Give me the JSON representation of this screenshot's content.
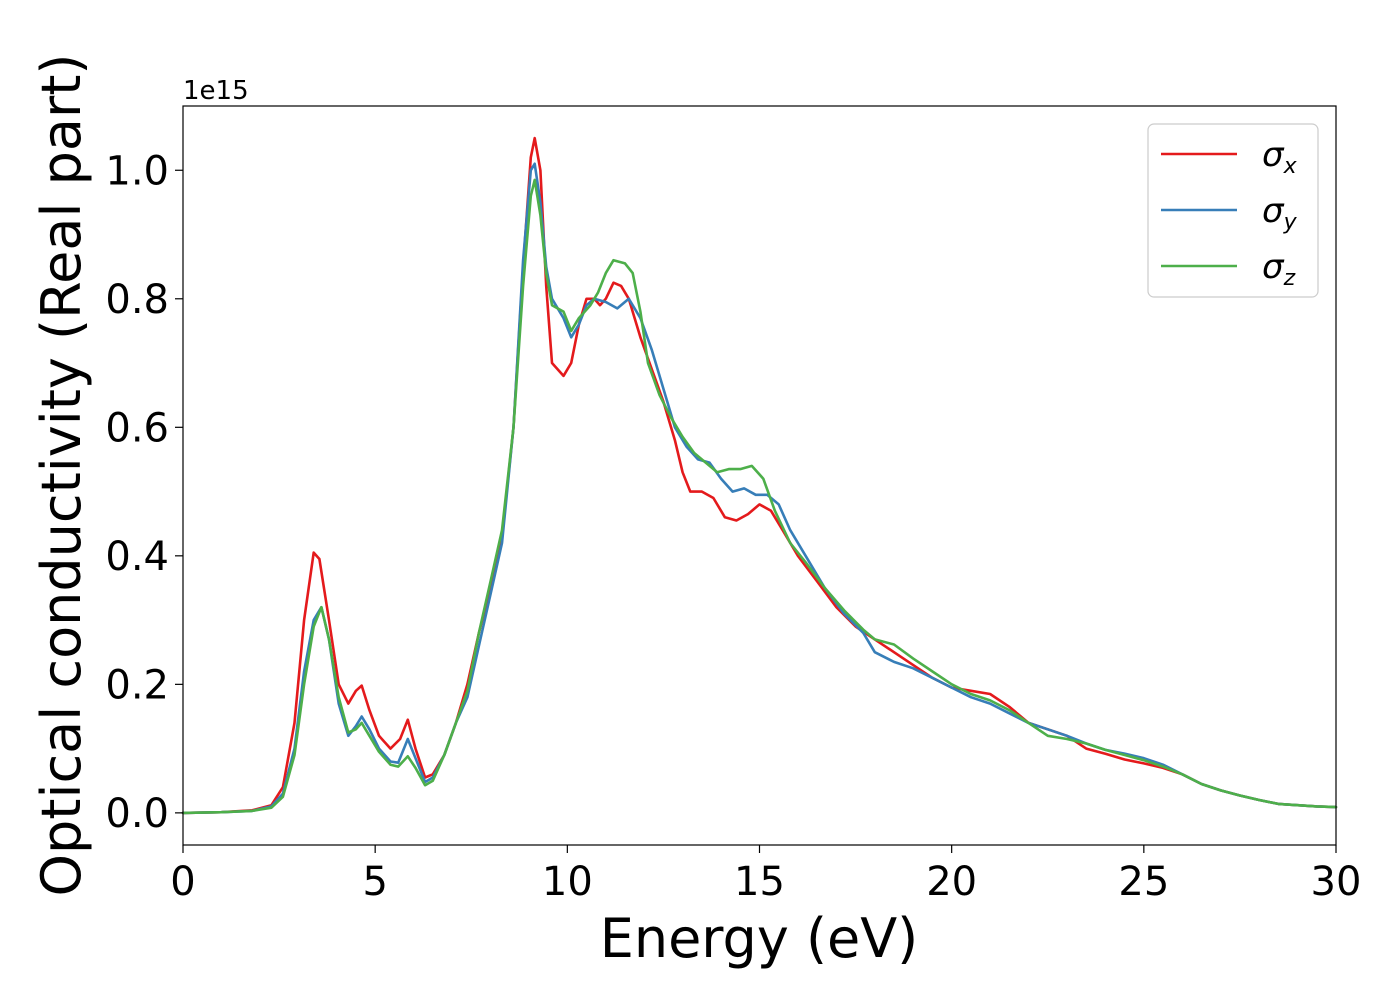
{
  "chart_data": {
    "type": "line",
    "xlabel": "Energy (eV)",
    "ylabel": "Optical conductivity (Real part)",
    "y_offset_label": "1e15",
    "xlim": [
      0,
      30
    ],
    "ylim": [
      -0.05,
      1.1
    ],
    "x_ticks": [
      "0",
      "5",
      "10",
      "15",
      "20",
      "25",
      "30"
    ],
    "y_ticks": [
      "0.0",
      "0.2",
      "0.4",
      "0.6",
      "0.8",
      "1.0"
    ],
    "grid": false,
    "legend_position": "top-right",
    "series": [
      {
        "name": "σx",
        "symbol": "σ",
        "subscript": "x",
        "color": "#e41a1c",
        "points": [
          [
            0,
            0
          ],
          [
            1,
            0.001
          ],
          [
            1.8,
            0.004
          ],
          [
            2.3,
            0.012
          ],
          [
            2.6,
            0.04
          ],
          [
            2.9,
            0.14
          ],
          [
            3.15,
            0.3
          ],
          [
            3.4,
            0.405
          ],
          [
            3.55,
            0.395
          ],
          [
            3.8,
            0.3
          ],
          [
            4.05,
            0.2
          ],
          [
            4.3,
            0.17
          ],
          [
            4.5,
            0.19
          ],
          [
            4.65,
            0.198
          ],
          [
            4.85,
            0.16
          ],
          [
            5.1,
            0.12
          ],
          [
            5.4,
            0.1
          ],
          [
            5.65,
            0.115
          ],
          [
            5.85,
            0.145
          ],
          [
            6.05,
            0.1
          ],
          [
            6.3,
            0.055
          ],
          [
            6.5,
            0.06
          ],
          [
            6.8,
            0.09
          ],
          [
            7.1,
            0.14
          ],
          [
            7.4,
            0.2
          ],
          [
            7.7,
            0.28
          ],
          [
            8.0,
            0.35
          ],
          [
            8.3,
            0.43
          ],
          [
            8.6,
            0.6
          ],
          [
            8.85,
            0.85
          ],
          [
            9.05,
            1.02
          ],
          [
            9.15,
            1.05
          ],
          [
            9.3,
            1.0
          ],
          [
            9.45,
            0.82
          ],
          [
            9.6,
            0.7
          ],
          [
            9.9,
            0.68
          ],
          [
            10.1,
            0.7
          ],
          [
            10.3,
            0.76
          ],
          [
            10.5,
            0.8
          ],
          [
            10.7,
            0.8
          ],
          [
            10.85,
            0.79
          ],
          [
            11.0,
            0.8
          ],
          [
            11.2,
            0.825
          ],
          [
            11.4,
            0.82
          ],
          [
            11.6,
            0.8
          ],
          [
            11.9,
            0.74
          ],
          [
            12.2,
            0.69
          ],
          [
            12.5,
            0.64
          ],
          [
            12.8,
            0.58
          ],
          [
            13.0,
            0.53
          ],
          [
            13.2,
            0.5
          ],
          [
            13.5,
            0.5
          ],
          [
            13.8,
            0.49
          ],
          [
            14.1,
            0.46
          ],
          [
            14.4,
            0.455
          ],
          [
            14.7,
            0.465
          ],
          [
            15.0,
            0.48
          ],
          [
            15.3,
            0.47
          ],
          [
            15.6,
            0.44
          ],
          [
            16.0,
            0.4
          ],
          [
            16.5,
            0.36
          ],
          [
            17.0,
            0.32
          ],
          [
            17.5,
            0.29
          ],
          [
            18.0,
            0.27
          ],
          [
            18.5,
            0.25
          ],
          [
            19.0,
            0.23
          ],
          [
            19.5,
            0.21
          ],
          [
            20.0,
            0.195
          ],
          [
            20.5,
            0.19
          ],
          [
            21.0,
            0.185
          ],
          [
            21.5,
            0.165
          ],
          [
            22.0,
            0.14
          ],
          [
            22.5,
            0.13
          ],
          [
            23.0,
            0.12
          ],
          [
            23.5,
            0.1
          ],
          [
            24.0,
            0.092
          ],
          [
            24.5,
            0.083
          ],
          [
            25.0,
            0.077
          ],
          [
            25.5,
            0.07
          ],
          [
            26.0,
            0.06
          ],
          [
            26.5,
            0.045
          ],
          [
            27.0,
            0.035
          ],
          [
            27.5,
            0.027
          ],
          [
            28.0,
            0.02
          ],
          [
            28.5,
            0.014
          ],
          [
            29.0,
            0.012
          ],
          [
            29.5,
            0.01
          ],
          [
            30,
            0.009
          ]
        ]
      },
      {
        "name": "σy",
        "symbol": "σ",
        "subscript": "y",
        "color": "#377eb8",
        "points": [
          [
            0,
            0
          ],
          [
            1,
            0.001
          ],
          [
            1.8,
            0.003
          ],
          [
            2.3,
            0.01
          ],
          [
            2.6,
            0.03
          ],
          [
            2.9,
            0.1
          ],
          [
            3.15,
            0.22
          ],
          [
            3.4,
            0.3
          ],
          [
            3.6,
            0.32
          ],
          [
            3.8,
            0.27
          ],
          [
            4.05,
            0.17
          ],
          [
            4.3,
            0.12
          ],
          [
            4.5,
            0.135
          ],
          [
            4.65,
            0.15
          ],
          [
            4.85,
            0.13
          ],
          [
            5.1,
            0.1
          ],
          [
            5.4,
            0.08
          ],
          [
            5.6,
            0.078
          ],
          [
            5.85,
            0.115
          ],
          [
            6.05,
            0.085
          ],
          [
            6.3,
            0.048
          ],
          [
            6.5,
            0.055
          ],
          [
            6.8,
            0.09
          ],
          [
            7.1,
            0.14
          ],
          [
            7.4,
            0.18
          ],
          [
            7.7,
            0.26
          ],
          [
            8.0,
            0.34
          ],
          [
            8.3,
            0.42
          ],
          [
            8.6,
            0.6
          ],
          [
            8.85,
            0.86
          ],
          [
            9.05,
            1.0
          ],
          [
            9.15,
            1.01
          ],
          [
            9.3,
            0.95
          ],
          [
            9.45,
            0.85
          ],
          [
            9.6,
            0.8
          ],
          [
            9.9,
            0.77
          ],
          [
            10.1,
            0.74
          ],
          [
            10.3,
            0.76
          ],
          [
            10.5,
            0.79
          ],
          [
            10.7,
            0.8
          ],
          [
            11.0,
            0.795
          ],
          [
            11.3,
            0.785
          ],
          [
            11.6,
            0.8
          ],
          [
            11.9,
            0.77
          ],
          [
            12.2,
            0.72
          ],
          [
            12.5,
            0.66
          ],
          [
            12.8,
            0.6
          ],
          [
            13.1,
            0.57
          ],
          [
            13.4,
            0.55
          ],
          [
            13.7,
            0.545
          ],
          [
            14.0,
            0.52
          ],
          [
            14.3,
            0.5
          ],
          [
            14.6,
            0.505
          ],
          [
            14.9,
            0.495
          ],
          [
            15.2,
            0.495
          ],
          [
            15.5,
            0.48
          ],
          [
            15.8,
            0.44
          ],
          [
            16.2,
            0.4
          ],
          [
            16.7,
            0.35
          ],
          [
            17.2,
            0.31
          ],
          [
            17.7,
            0.28
          ],
          [
            18.0,
            0.25
          ],
          [
            18.5,
            0.235
          ],
          [
            19.0,
            0.225
          ],
          [
            19.5,
            0.21
          ],
          [
            20.0,
            0.195
          ],
          [
            20.5,
            0.18
          ],
          [
            21.0,
            0.17
          ],
          [
            21.5,
            0.155
          ],
          [
            22.0,
            0.14
          ],
          [
            22.5,
            0.13
          ],
          [
            23.0,
            0.12
          ],
          [
            23.5,
            0.108
          ],
          [
            24.0,
            0.098
          ],
          [
            24.5,
            0.092
          ],
          [
            25.0,
            0.085
          ],
          [
            25.5,
            0.075
          ],
          [
            26.0,
            0.06
          ],
          [
            26.5,
            0.045
          ],
          [
            27.0,
            0.035
          ],
          [
            27.5,
            0.027
          ],
          [
            28.0,
            0.02
          ],
          [
            28.5,
            0.014
          ],
          [
            29.0,
            0.012
          ],
          [
            29.5,
            0.01
          ],
          [
            30,
            0.009
          ]
        ]
      },
      {
        "name": "σz",
        "symbol": "σ",
        "subscript": "z",
        "color": "#4daf4a",
        "points": [
          [
            0,
            0
          ],
          [
            1,
            0.001
          ],
          [
            1.8,
            0.003
          ],
          [
            2.3,
            0.008
          ],
          [
            2.6,
            0.025
          ],
          [
            2.9,
            0.09
          ],
          [
            3.15,
            0.2
          ],
          [
            3.4,
            0.29
          ],
          [
            3.6,
            0.32
          ],
          [
            3.8,
            0.27
          ],
          [
            4.05,
            0.18
          ],
          [
            4.3,
            0.125
          ],
          [
            4.5,
            0.13
          ],
          [
            4.65,
            0.14
          ],
          [
            4.85,
            0.12
          ],
          [
            5.1,
            0.095
          ],
          [
            5.4,
            0.075
          ],
          [
            5.6,
            0.072
          ],
          [
            5.85,
            0.088
          ],
          [
            6.05,
            0.07
          ],
          [
            6.3,
            0.043
          ],
          [
            6.5,
            0.05
          ],
          [
            6.8,
            0.09
          ],
          [
            7.1,
            0.14
          ],
          [
            7.4,
            0.19
          ],
          [
            7.7,
            0.28
          ],
          [
            8.0,
            0.36
          ],
          [
            8.3,
            0.44
          ],
          [
            8.6,
            0.6
          ],
          [
            8.85,
            0.82
          ],
          [
            9.05,
            0.96
          ],
          [
            9.15,
            0.985
          ],
          [
            9.3,
            0.93
          ],
          [
            9.45,
            0.84
          ],
          [
            9.6,
            0.79
          ],
          [
            9.9,
            0.78
          ],
          [
            10.1,
            0.75
          ],
          [
            10.3,
            0.77
          ],
          [
            10.6,
            0.79
          ],
          [
            10.8,
            0.81
          ],
          [
            11.0,
            0.84
          ],
          [
            11.2,
            0.86
          ],
          [
            11.5,
            0.855
          ],
          [
            11.7,
            0.84
          ],
          [
            11.9,
            0.78
          ],
          [
            12.1,
            0.7
          ],
          [
            12.4,
            0.65
          ],
          [
            12.7,
            0.615
          ],
          [
            13.0,
            0.585
          ],
          [
            13.3,
            0.56
          ],
          [
            13.6,
            0.545
          ],
          [
            13.9,
            0.53
          ],
          [
            14.2,
            0.535
          ],
          [
            14.5,
            0.535
          ],
          [
            14.8,
            0.54
          ],
          [
            15.1,
            0.52
          ],
          [
            15.4,
            0.47
          ],
          [
            15.8,
            0.42
          ],
          [
            16.2,
            0.39
          ],
          [
            16.7,
            0.35
          ],
          [
            17.2,
            0.315
          ],
          [
            17.7,
            0.285
          ],
          [
            18.0,
            0.27
          ],
          [
            18.5,
            0.262
          ],
          [
            19.0,
            0.24
          ],
          [
            19.5,
            0.22
          ],
          [
            20.0,
            0.2
          ],
          [
            20.5,
            0.185
          ],
          [
            21.0,
            0.175
          ],
          [
            21.5,
            0.16
          ],
          [
            22.0,
            0.14
          ],
          [
            22.5,
            0.12
          ],
          [
            23.0,
            0.115
          ],
          [
            23.5,
            0.108
          ],
          [
            24.0,
            0.098
          ],
          [
            24.5,
            0.09
          ],
          [
            25.0,
            0.082
          ],
          [
            25.5,
            0.072
          ],
          [
            26.0,
            0.06
          ],
          [
            26.5,
            0.045
          ],
          [
            27.0,
            0.035
          ],
          [
            27.5,
            0.027
          ],
          [
            28.0,
            0.02
          ],
          [
            28.5,
            0.014
          ],
          [
            29.0,
            0.012
          ],
          [
            29.5,
            0.01
          ],
          [
            30,
            0.009
          ]
        ]
      }
    ]
  }
}
